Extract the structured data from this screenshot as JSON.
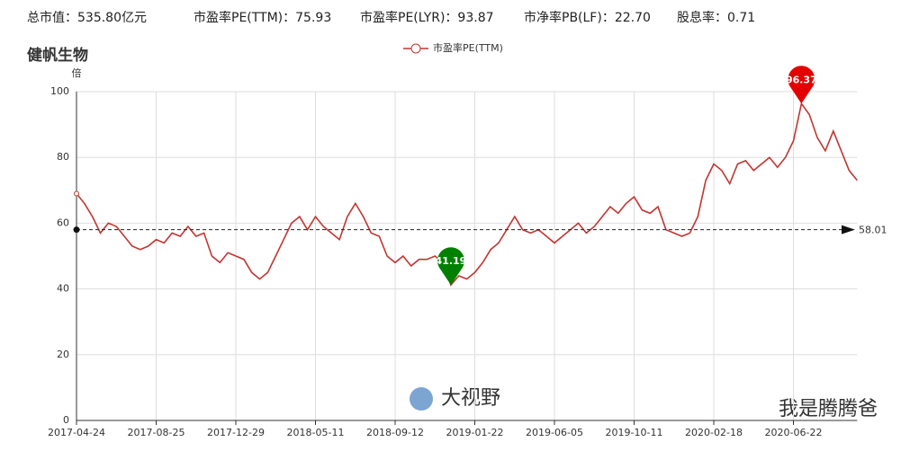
{
  "header": {
    "items": [
      "总市值：535.80亿元",
      "市盈率PE(TTM)：75.93",
      "市盈率PE(LYR)：93.87",
      "市净率PB(LF)：22.70",
      "股息率：0.71"
    ]
  },
  "watermarks": [
    "大视野",
    "我是腾腾爸"
  ],
  "chart_data": {
    "type": "line",
    "title": "健帆生物",
    "y_unit": "倍",
    "categories": [
      "2017-04-24",
      null,
      null,
      null,
      null,
      null,
      null,
      null,
      null,
      null,
      "2017-08-25",
      null,
      null,
      null,
      null,
      null,
      null,
      null,
      null,
      null,
      "2017-12-29",
      null,
      null,
      null,
      null,
      null,
      null,
      null,
      null,
      null,
      "2018-05-11",
      null,
      null,
      null,
      null,
      null,
      null,
      null,
      null,
      null,
      "2018-09-12",
      null,
      null,
      null,
      null,
      null,
      null,
      null,
      null,
      null,
      "2019-01-22",
      null,
      null,
      null,
      null,
      null,
      null,
      null,
      null,
      null,
      "2019-06-05",
      null,
      null,
      null,
      null,
      null,
      null,
      null,
      null,
      null,
      "2019-10-11",
      null,
      null,
      null,
      null,
      null,
      null,
      null,
      null,
      null,
      "2020-02-18",
      null,
      null,
      null,
      null,
      null,
      null,
      null,
      null,
      null,
      "2020-06-22",
      null,
      null,
      null,
      null,
      null,
      null,
      null,
      null
    ],
    "series": [
      {
        "name": "市盈率PE(TTM)",
        "color": "#c23531",
        "values": [
          69,
          66,
          62,
          57,
          60,
          59,
          56,
          53,
          52,
          53,
          55,
          54,
          57,
          56,
          59,
          56,
          57,
          50,
          48,
          51,
          50,
          49,
          45,
          43,
          45,
          50,
          55,
          60,
          62,
          58,
          62,
          59,
          57,
          55,
          62,
          66,
          62,
          57,
          56,
          50,
          48,
          50,
          47,
          49,
          49,
          50,
          48,
          41.19,
          44,
          43,
          45,
          48,
          52,
          54,
          58,
          62,
          58,
          57,
          58,
          56,
          54,
          56,
          58,
          60,
          57,
          59,
          62,
          65,
          63,
          66,
          68,
          64,
          63,
          65,
          58,
          57,
          56,
          57,
          62,
          73,
          78,
          76,
          72,
          78,
          79,
          76,
          78,
          80,
          77,
          80,
          85,
          96.37,
          93,
          86,
          82,
          88,
          82,
          76,
          73
        ]
      }
    ],
    "max_index": 91,
    "min_index": 47,
    "mean_line": 58.01,
    "ylim": [
      0,
      100
    ],
    "yticks": [
      0,
      20,
      40,
      60,
      80,
      100
    ],
    "grid": true
  }
}
